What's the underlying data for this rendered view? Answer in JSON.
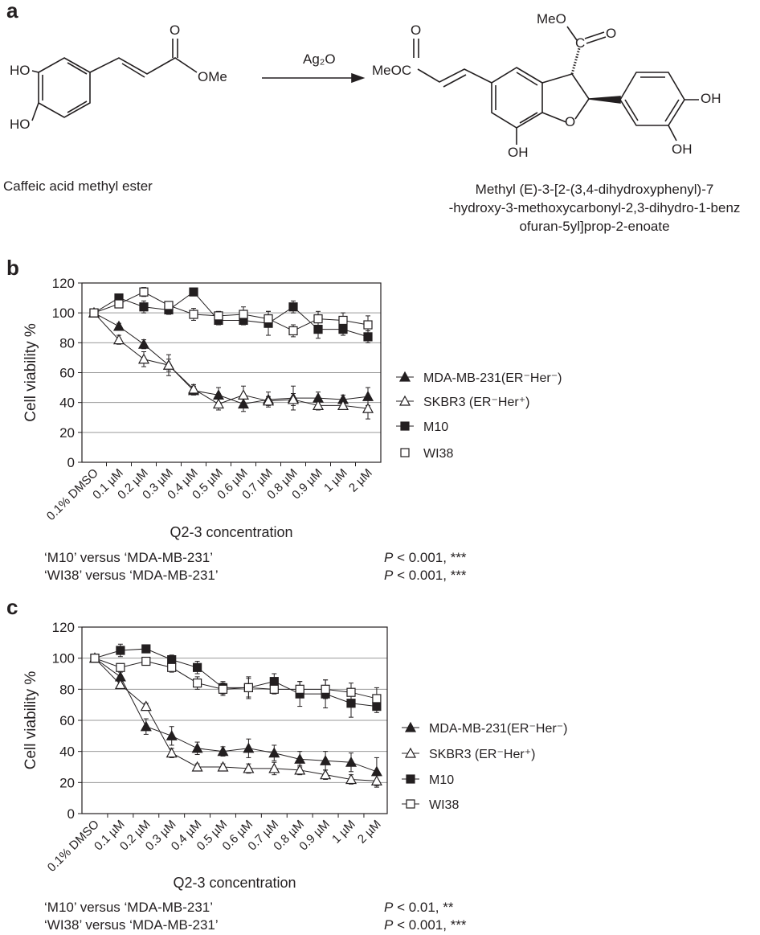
{
  "panels": {
    "a": "a",
    "b": "b",
    "c": "c"
  },
  "scheme": {
    "reactant_name": "Caffeic acid methyl ester",
    "reagent": "Ag₂O",
    "product_name_lines": [
      "Methyl (E)-3-[2-(3,4-dihydroxyphenyl)-7",
      "-hydroxy-3-methoxycarbonyl-2,3-dihydro-1-benz",
      "ofuran-5yl]prop-2-enoate"
    ],
    "atoms": {
      "HO": "HO",
      "OH": "OH",
      "O": "O",
      "OMe": "OMe",
      "MeO": "MeO",
      "MeOC": "MeOC",
      "C": "C"
    }
  },
  "chart_data": [
    {
      "type": "line",
      "panel": "b",
      "xlabel": "Q2-3 concentration",
      "ylabel": "Cell viability %",
      "ylim": [
        0,
        120
      ],
      "yticks": [
        0,
        20,
        40,
        60,
        80,
        100,
        120
      ],
      "grid": true,
      "legend": "right",
      "categories": [
        "0.1% DMSO",
        "0.1 µM",
        "0.2 µM",
        "0.3 µM",
        "0.4 µM",
        "0.5 µM",
        "0.6 µM",
        "0.7 µM",
        "0.8 µM",
        "0.9 µM",
        "1 µM",
        "2 µM"
      ],
      "series": [
        {
          "name": "MDA-MB-231(ER⁻Her⁻)",
          "marker": "filled-triangle",
          "values": [
            100,
            91,
            79,
            65,
            48,
            45,
            39,
            42,
            43,
            43,
            42,
            44
          ],
          "errors": [
            2,
            2,
            3,
            4,
            3,
            5,
            5,
            5,
            8,
            4,
            3,
            6
          ]
        },
        {
          "name": "SKBR3 (ER⁻Her⁺)",
          "marker": "open-triangle",
          "values": [
            100,
            82,
            69,
            65,
            49,
            39,
            45,
            41,
            42,
            38,
            38,
            36
          ],
          "errors": [
            2,
            3,
            5,
            7,
            3,
            4,
            6,
            3,
            4,
            3,
            2,
            7
          ]
        },
        {
          "name": "M10",
          "marker": "filled-square",
          "values": [
            100,
            110,
            104,
            102,
            114,
            95,
            95,
            93,
            104,
            89,
            89,
            84
          ],
          "errors": [
            2,
            2,
            4,
            3,
            2,
            3,
            3,
            8,
            4,
            6,
            4,
            4
          ]
        },
        {
          "name": "WI38",
          "marker": "open-square",
          "values": [
            100,
            106,
            114,
            105,
            99,
            98,
            99,
            96,
            88,
            96,
            95,
            92
          ],
          "errors": [
            2,
            2,
            3,
            2,
            4,
            3,
            5,
            5,
            4,
            5,
            5,
            6
          ]
        }
      ],
      "stats": [
        {
          "comparison": "‘M10’ versus ‘MDA-MB-231’",
          "p": "P",
          "value": " < 0.001, ***"
        },
        {
          "comparison": "‘WI38’ versus ‘MDA-MB-231’",
          "p": "P",
          "value": " < 0.001, ***"
        }
      ]
    },
    {
      "type": "line",
      "panel": "c",
      "xlabel": "Q2-3 concentration",
      "ylabel": "Cell viability %",
      "ylim": [
        0,
        120
      ],
      "yticks": [
        0,
        20,
        40,
        60,
        80,
        100,
        120
      ],
      "grid": true,
      "legend": "right",
      "categories": [
        "0.1% DMSO",
        "0.1 µM",
        "0.2 µM",
        "0.3 µM",
        "0.4 µM",
        "0.5 µM",
        "0.6 µM",
        "0.7 µM",
        "0.8 µM",
        "0.9 µM",
        "1 µM",
        "2 µM"
      ],
      "series": [
        {
          "name": "MDA-MB-231(ER⁻Her⁻)",
          "marker": "filled-triangle",
          "values": [
            100,
            88,
            56,
            50,
            42,
            40,
            42,
            39,
            35,
            34,
            33,
            27
          ],
          "errors": [
            2,
            3,
            5,
            6,
            4,
            3,
            6,
            5,
            5,
            6,
            6,
            9
          ]
        },
        {
          "name": "SKBR3 (ER⁻Her⁺)",
          "marker": "open-triangle",
          "values": [
            100,
            83,
            69,
            39,
            30,
            30,
            29,
            29,
            28,
            25,
            22,
            21
          ],
          "errors": [
            2,
            2,
            2,
            3,
            2,
            2,
            3,
            4,
            3,
            3,
            3,
            4
          ]
        },
        {
          "name": "M10",
          "marker": "filled-square",
          "values": [
            100,
            105,
            106,
            99,
            94,
            81,
            81,
            85,
            77,
            77,
            71,
            69
          ],
          "errors": [
            2,
            4,
            2,
            3,
            4,
            4,
            7,
            5,
            8,
            9,
            9,
            4
          ]
        },
        {
          "name": "WI38",
          "marker": "open-square",
          "values": [
            100,
            94,
            98,
            94,
            84,
            80,
            81,
            80,
            80,
            80,
            78,
            74
          ],
          "errors": [
            2,
            2,
            2,
            3,
            4,
            4,
            6,
            3,
            5,
            6,
            6,
            7
          ]
        }
      ],
      "stats": [
        {
          "comparison": "‘M10’ versus ‘MDA-MB-231’",
          "p": "P",
          "value": " < 0.01, **"
        },
        {
          "comparison": "‘WI38’ versus ‘MDA-MB-231’",
          "p": "P",
          "value": " < 0.001, ***"
        }
      ]
    }
  ]
}
